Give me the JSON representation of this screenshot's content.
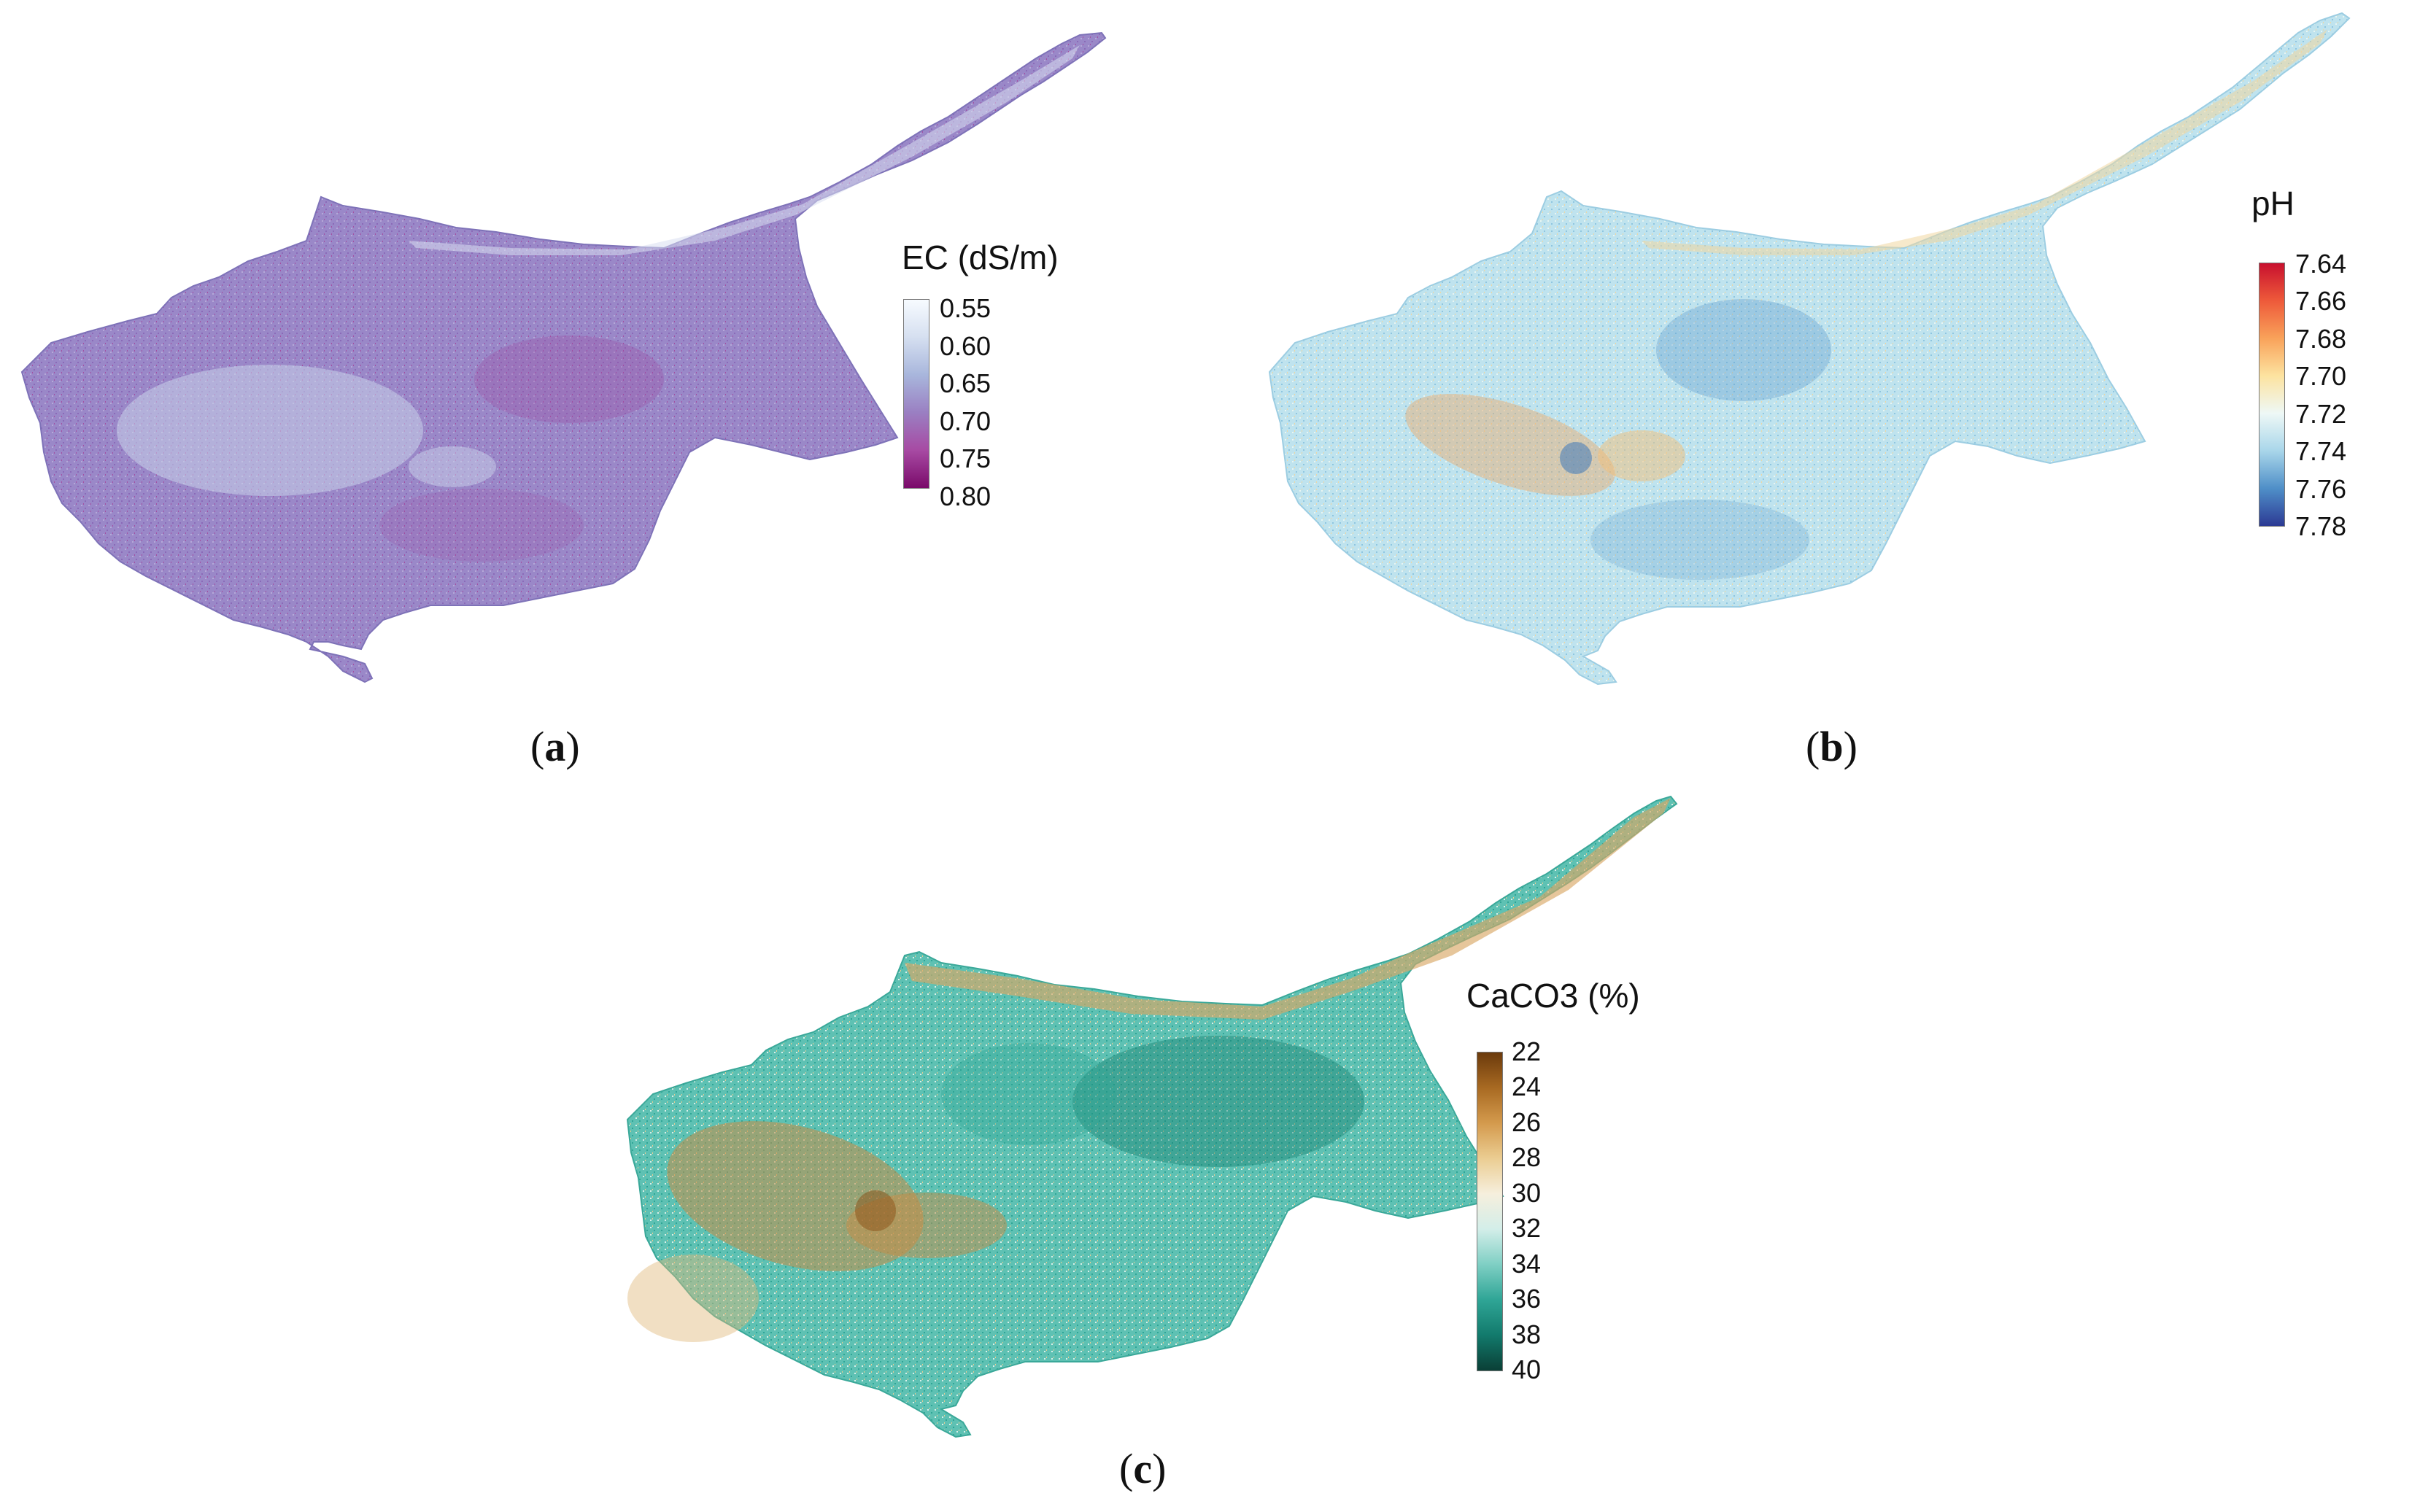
{
  "panels": [
    {
      "id": "a",
      "caption_letter": "a",
      "legend_title": "EC (dS/m)",
      "legend_ticks": [
        "0.55",
        "0.60",
        "0.65",
        "0.70",
        "0.75",
        "0.80"
      ],
      "gradient": [
        "#f7fbff",
        "#d5dff0",
        "#a8b6dc",
        "#9a7fc2",
        "#a74aa3",
        "#7a0a6a"
      ],
      "base_color": "#9a88c8",
      "light_color": "#c9d2ea",
      "hot_color": "#9a4aa2"
    },
    {
      "id": "b",
      "caption_letter": "b",
      "legend_title": "pH",
      "legend_ticks": [
        "7.64",
        "7.66",
        "7.68",
        "7.70",
        "7.72",
        "7.74",
        "7.76",
        "7.78"
      ],
      "gradient": [
        "#c8102e",
        "#ee5a3a",
        "#f9a25a",
        "#fde3a0",
        "#eef8f6",
        "#a9d6ea",
        "#4f8fc8",
        "#2c3a94"
      ],
      "base_color": "#bfe3ee",
      "light_color": "#e9f5f1",
      "hot_color": "#e9a86a"
    },
    {
      "id": "c",
      "caption_letter": "c",
      "legend_title": "CaCO3 (%)",
      "legend_ticks": [
        "22",
        "24",
        "26",
        "28",
        "30",
        "32",
        "34",
        "36",
        "38",
        "40"
      ],
      "gradient": [
        "#6b3a0c",
        "#a86a22",
        "#d49a4d",
        "#ebcd92",
        "#f6efdd",
        "#d3eee9",
        "#7fcfc4",
        "#2fa596",
        "#127a6c",
        "#0a3f36"
      ],
      "base_color": "#5ec1b3",
      "light_color": "#d8efe9",
      "hot_color": "#c58c45"
    }
  ]
}
